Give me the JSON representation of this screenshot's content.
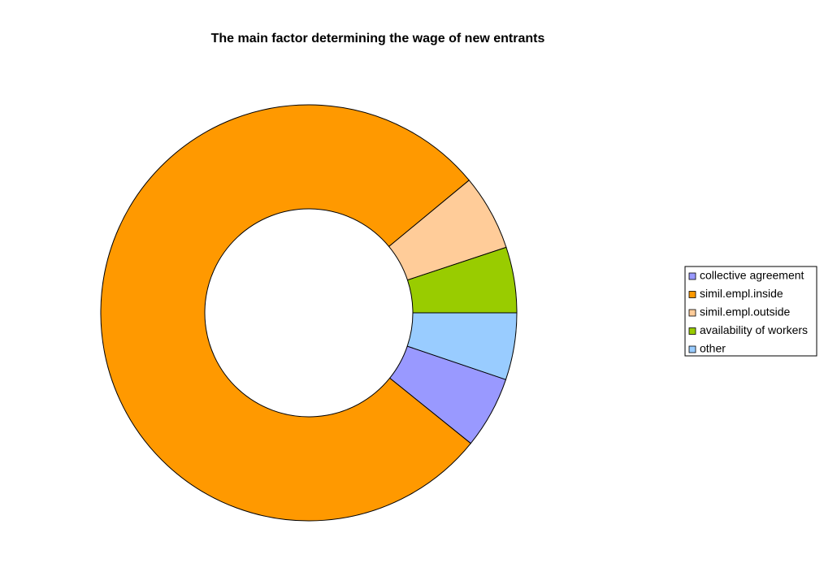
{
  "chart_data": {
    "type": "donut",
    "title": "The main factor determining the wage of new entrants",
    "series": [
      {
        "name": "collective agreement",
        "color": "#9999ff",
        "values": [
          5.6
        ]
      },
      {
        "name": "simil.empl.inside",
        "color": "#ff9900",
        "values": [
          78.2
        ]
      },
      {
        "name": "simil.empl.outside",
        "color": "#ffcc99",
        "values": [
          5.9
        ]
      },
      {
        "name": "availability of workers",
        "color": "#99cc00",
        "values": [
          5.1
        ]
      },
      {
        "name": "other",
        "color": "#99ccff",
        "values": [
          5.2
        ]
      }
    ],
    "legend": "right"
  }
}
